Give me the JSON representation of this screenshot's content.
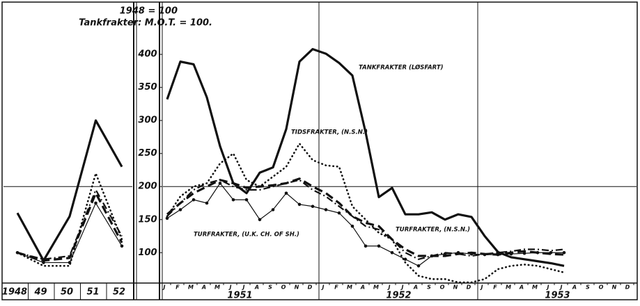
{
  "chart_data": [
    {
      "type": "line",
      "categories": [
        "1948",
        "49",
        "50",
        "51",
        "52"
      ],
      "ylim": [
        54,
        477
      ],
      "series": [
        {
          "style": "solid-thick",
          "color": "#111",
          "values": [
            160,
            88,
            155,
            300,
            230
          ]
        },
        {
          "style": "dotted",
          "color": "#111",
          "values": [
            100,
            80,
            80,
            220,
            120
          ]
        },
        {
          "style": "thin",
          "color": "#111",
          "values": [
            100,
            85,
            85,
            175,
            110
          ]
        },
        {
          "style": "dash-dot",
          "color": "#111",
          "values": [
            100,
            90,
            95,
            195,
            125
          ]
        },
        {
          "style": "dashed",
          "color": "#111",
          "values": [
            100,
            88,
            92,
            190,
            115
          ]
        }
      ],
      "hline": 200
    },
    {
      "type": "line",
      "y_axis_label": [
        "1948 = 100",
        "Tankfrakter: M.O.T. = 100."
      ],
      "categories": [
        "J",
        "F",
        "M",
        "A",
        "M",
        "J",
        "J",
        "A",
        "S",
        "O",
        "N",
        "D",
        "J",
        "F",
        "M",
        "A",
        "M",
        "J",
        "J",
        "A",
        "S",
        "O",
        "N",
        "D",
        "J",
        "F",
        "M",
        "A",
        "M",
        "J",
        "J",
        "A",
        "S",
        "O",
        "N",
        "D"
      ],
      "year_labels": [
        "1951",
        "1952",
        "1953"
      ],
      "ylim": [
        54,
        477
      ],
      "yticks": [
        100,
        150,
        200,
        250,
        300,
        350,
        400
      ],
      "hline": 200,
      "series": [
        {
          "name": "TANKFRAKTER (LØSFART)",
          "style": "solid-thick",
          "color": "#111",
          "values": [
            332,
            389,
            385,
            335,
            261,
            205,
            190,
            221,
            229,
            287,
            389,
            408,
            401,
            387,
            368,
            282,
            184,
            198,
            158,
            158,
            161,
            150,
            158,
            154,
            125,
            101,
            93,
            90,
            87,
            84,
            80,
            null,
            null,
            null,
            null,
            null
          ]
        },
        {
          "name": "TIDSFRAKTER, (N.S.N.)",
          "style": "dotted",
          "color": "#111",
          "values": [
            155,
            185,
            200,
            205,
            235,
            250,
            210,
            200,
            215,
            230,
            265,
            240,
            232,
            230,
            170,
            150,
            130,
            120,
            85,
            65,
            60,
            60,
            55,
            55,
            60,
            75,
            80,
            82,
            80,
            75,
            70,
            null,
            null,
            null,
            null,
            null
          ]
        },
        {
          "name": "TURFRAKTER, (U.K. CH. OF SH.)",
          "style": "thin",
          "color": "#111",
          "values": [
            152,
            165,
            180,
            175,
            205,
            180,
            180,
            150,
            165,
            190,
            173,
            170,
            165,
            160,
            140,
            110,
            110,
            100,
            90,
            80,
            95,
            98,
            100,
            98,
            97,
            97,
            98,
            99,
            100,
            100,
            100,
            null,
            null,
            null,
            null,
            null
          ]
        },
        {
          "name": "TURFRAKTER, (N.S.N.)",
          "style": "dash-dot",
          "color": "#111",
          "values": [
            155,
            175,
            195,
            205,
            210,
            200,
            195,
            195,
            200,
            205,
            210,
            195,
            185,
            170,
            155,
            140,
            135,
            120,
            100,
            90,
            95,
            100,
            98,
            95,
            98,
            100,
            102,
            105,
            105,
            103,
            105,
            null,
            null,
            null,
            null,
            null
          ]
        },
        {
          "style": "dashed",
          "color": "#111",
          "values": [
            158,
            175,
            190,
            200,
            210,
            205,
            198,
            200,
            202,
            205,
            212,
            200,
            190,
            175,
            155,
            145,
            140,
            120,
            105,
            95,
            95,
            95,
            98,
            100,
            98,
            97,
            100,
            102,
            100,
            98,
            97,
            null,
            null,
            null,
            null,
            null
          ]
        }
      ]
    }
  ]
}
